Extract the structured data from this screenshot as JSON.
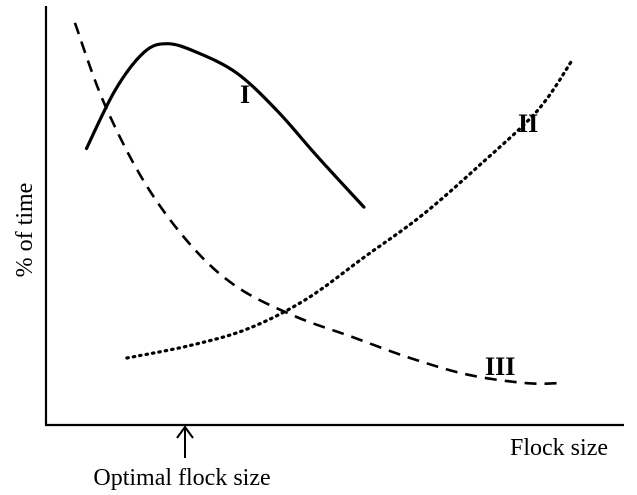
{
  "chart_data": {
    "type": "line",
    "title": "",
    "xlabel": "Flock size",
    "ylabel": "% of time",
    "xlim": [
      0,
      10
    ],
    "ylim": [
      0,
      10
    ],
    "grid": false,
    "legend": "none",
    "ticks": "none",
    "annotation": {
      "text": "Optimal flock size",
      "x": 2.2
    },
    "series": [
      {
        "name": "I",
        "style": "solid",
        "points": [
          [
            0.7,
            6.6
          ],
          [
            1.2,
            8.0
          ],
          [
            1.7,
            8.9
          ],
          [
            2.1,
            9.1
          ],
          [
            2.6,
            8.9
          ],
          [
            3.3,
            8.4
          ],
          [
            4.0,
            7.5
          ],
          [
            4.7,
            6.4
          ],
          [
            5.5,
            5.2
          ]
        ]
      },
      {
        "name": "II",
        "style": "dotted",
        "points": [
          [
            1.4,
            1.6
          ],
          [
            2.5,
            1.9
          ],
          [
            3.5,
            2.3
          ],
          [
            4.5,
            3.0
          ],
          [
            5.5,
            4.0
          ],
          [
            6.5,
            5.0
          ],
          [
            7.5,
            6.2
          ],
          [
            8.5,
            7.5
          ],
          [
            9.1,
            8.7
          ]
        ]
      },
      {
        "name": "III",
        "style": "dashed",
        "points": [
          [
            0.5,
            9.6
          ],
          [
            1.0,
            7.7
          ],
          [
            1.7,
            5.8
          ],
          [
            2.5,
            4.3
          ],
          [
            3.3,
            3.3
          ],
          [
            4.3,
            2.6
          ],
          [
            5.3,
            2.1
          ],
          [
            6.3,
            1.6
          ],
          [
            7.3,
            1.2
          ],
          [
            8.3,
            1.0
          ],
          [
            8.9,
            1.0
          ]
        ]
      }
    ]
  }
}
